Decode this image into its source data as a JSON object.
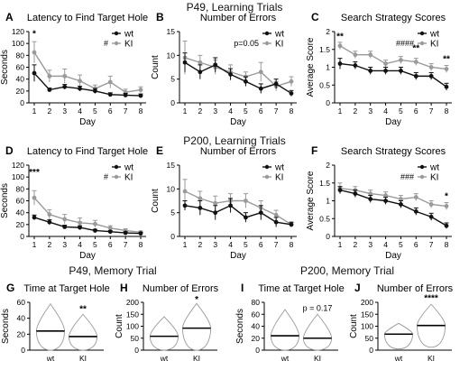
{
  "figure": {
    "section_titles": [
      "P49, Learning Trials",
      "P200, Learning Trials",
      "P49, Memory Trial",
      "P200, Memory Trial"
    ],
    "colors": {
      "wt": "#111111",
      "ki": "#9a9a9a"
    }
  },
  "chart_data": [
    {
      "id": "A",
      "label": "A",
      "type": "line",
      "title": "Latency to Find Target Hole",
      "xlabel": "Day",
      "ylabel": "Seconds",
      "ylim": [
        0,
        120
      ],
      "yticks": [
        0,
        20,
        40,
        60,
        80,
        100,
        120
      ],
      "x": [
        1,
        2,
        3,
        4,
        5,
        6,
        7,
        8
      ],
      "series": [
        {
          "name": "wt",
          "values": [
            50,
            22,
            27,
            24,
            20,
            14,
            13,
            12
          ],
          "err": [
            14,
            3,
            4,
            4,
            4,
            3,
            3,
            3
          ]
        },
        {
          "name": "KI",
          "values": [
            85,
            45,
            45,
            37,
            24,
            35,
            18,
            22
          ],
          "err": [
            18,
            10,
            12,
            10,
            6,
            10,
            5,
            5
          ]
        }
      ],
      "legend": {
        "entries": [
          "wt",
          "KI"
        ],
        "position": "top-right",
        "mark": "#"
      },
      "annotations": [
        {
          "text": "*",
          "x": 1,
          "y": 112
        }
      ]
    },
    {
      "id": "B",
      "label": "B",
      "type": "line",
      "title": "Number of Errors",
      "xlabel": "Day",
      "ylabel": "Count",
      "ylim": [
        0,
        15
      ],
      "yticks": [
        0,
        5,
        10,
        15
      ],
      "x": [
        1,
        2,
        3,
        4,
        5,
        6,
        7,
        8
      ],
      "series": [
        {
          "name": "wt",
          "values": [
            8.5,
            6.5,
            8,
            6,
            4.5,
            3,
            4,
            2
          ],
          "err": [
            2,
            1.5,
            1.5,
            1.2,
            1,
            1,
            1,
            0.6
          ]
        },
        {
          "name": "KI",
          "values": [
            9.5,
            8.5,
            7.5,
            6.5,
            5.5,
            6.5,
            3.5,
            4.5
          ],
          "err": [
            3.5,
            1.5,
            1.5,
            1.5,
            1,
            2,
            1,
            1
          ]
        }
      ],
      "legend": {
        "entries": [
          "wt",
          "KI"
        ],
        "position": "top-right",
        "note": "p=0.05"
      },
      "annotations": []
    },
    {
      "id": "C",
      "label": "C",
      "type": "line",
      "title": "Search Strategy Scores",
      "xlabel": "Day",
      "ylabel": "Average Score",
      "ylim": [
        0,
        2.0
      ],
      "yticks": [
        0,
        0.5,
        1.0,
        1.5,
        2.0
      ],
      "x": [
        1,
        2,
        3,
        4,
        5,
        6,
        7,
        8
      ],
      "series": [
        {
          "name": "wt",
          "values": [
            1.1,
            1.05,
            0.9,
            0.9,
            0.9,
            0.75,
            0.75,
            0.45
          ],
          "err": [
            0.15,
            0.1,
            0.1,
            0.1,
            0.1,
            0.1,
            0.1,
            0.1
          ]
        },
        {
          "name": "KI",
          "values": [
            1.6,
            1.35,
            1.35,
            1.1,
            1.2,
            1.15,
            1.0,
            0.95
          ],
          "err": [
            0.1,
            0.1,
            0.1,
            0.1,
            0.1,
            0.1,
            0.1,
            0.1
          ]
        }
      ],
      "legend": {
        "entries": [
          "wt",
          "KI"
        ],
        "position": "top-right",
        "mark": "####"
      },
      "annotations": [
        {
          "text": "**",
          "x": 1,
          "y": 1.78
        },
        {
          "text": "**",
          "x": 6,
          "y": 1.45
        },
        {
          "text": "**",
          "x": 8,
          "y": 1.15
        }
      ]
    },
    {
      "id": "D",
      "label": "D",
      "type": "line",
      "title": "Latency to Find Target Hole",
      "xlabel": "Day",
      "ylabel": "Seconds",
      "ylim": [
        0,
        120
      ],
      "yticks": [
        0,
        20,
        40,
        60,
        80,
        100,
        120
      ],
      "x": [
        1,
        2,
        3,
        4,
        5,
        6,
        7,
        8
      ],
      "series": [
        {
          "name": "wt",
          "values": [
            32,
            24,
            16,
            15,
            10,
            8,
            6,
            5
          ],
          "err": [
            4,
            4,
            3,
            3,
            2,
            2,
            2,
            2
          ]
        },
        {
          "name": "KI",
          "values": [
            65,
            37,
            29,
            23,
            21,
            14,
            10,
            7
          ],
          "err": [
            12,
            8,
            8,
            8,
            6,
            4,
            3,
            2
          ]
        }
      ],
      "legend": {
        "entries": [
          "wt",
          "KI"
        ],
        "position": "top-right",
        "mark": "#"
      },
      "annotations": [
        {
          "text": "***",
          "x": 1,
          "y": 103
        }
      ]
    },
    {
      "id": "E",
      "label": "E",
      "type": "line",
      "title": "Number of Errors",
      "xlabel": "Day",
      "ylabel": "Count",
      "ylim": [
        0,
        15
      ],
      "yticks": [
        0,
        5,
        10,
        15
      ],
      "x": [
        1,
        2,
        3,
        4,
        5,
        6,
        7,
        8
      ],
      "series": [
        {
          "name": "wt",
          "values": [
            6.5,
            6,
            5,
            6.5,
            4,
            5,
            3,
            2.5
          ],
          "err": [
            1,
            1.5,
            1.5,
            1.5,
            1,
            1.5,
            1,
            0.5
          ]
        },
        {
          "name": "KI",
          "values": [
            9.5,
            8,
            7,
            7.5,
            7.5,
            6,
            4.5,
            2.5
          ],
          "err": [
            2.5,
            1.5,
            1.5,
            1.5,
            1.5,
            1.5,
            1,
            0.5
          ]
        }
      ],
      "legend": {
        "entries": [
          "wt",
          "KI"
        ],
        "position": "top-right"
      },
      "annotations": []
    },
    {
      "id": "F",
      "label": "F",
      "type": "line",
      "title": "Search Strategy Scores",
      "xlabel": "Day",
      "ylabel": "Average Score",
      "ylim": [
        0,
        2.0
      ],
      "yticks": [
        0,
        0.5,
        1.0,
        1.5,
        2.0
      ],
      "x": [
        1,
        2,
        3,
        4,
        5,
        6,
        7,
        8
      ],
      "series": [
        {
          "name": "wt",
          "values": [
            1.3,
            1.2,
            1.05,
            1.0,
            0.9,
            0.7,
            0.55,
            0.3
          ],
          "err": [
            0.1,
            0.1,
            0.1,
            0.1,
            0.1,
            0.1,
            0.1,
            0.08
          ]
        },
        {
          "name": "KI",
          "values": [
            1.35,
            1.3,
            1.2,
            1.15,
            1.05,
            1.1,
            0.9,
            0.85
          ],
          "err": [
            0.15,
            0.1,
            0.1,
            0.1,
            0.1,
            0.1,
            0.1,
            0.1
          ]
        }
      ],
      "legend": {
        "entries": [
          "wt",
          "KI"
        ],
        "position": "top-right",
        "mark": "###"
      },
      "annotations": [
        {
          "text": "*",
          "x": 8,
          "y": 1.05
        }
      ]
    },
    {
      "id": "G",
      "label": "G",
      "type": "violin",
      "title": "Time at Target Hole",
      "xlabel": "",
      "ylabel": "Seconds",
      "ylim": [
        0,
        60
      ],
      "yticks": [
        0,
        20,
        40,
        60
      ],
      "categories": [
        "wt",
        "KI"
      ],
      "series": [
        {
          "name": "wt",
          "median": 24,
          "min": 0,
          "max": 58
        },
        {
          "name": "KI",
          "median": 17,
          "min": 0,
          "max": 45
        }
      ],
      "annotations": [
        {
          "text": "**",
          "category": "KI",
          "y": 48
        }
      ]
    },
    {
      "id": "H",
      "label": "H",
      "type": "violin",
      "title": "Number of Errors",
      "xlabel": "",
      "ylabel": "Count",
      "ylim": [
        0,
        200
      ],
      "yticks": [
        0,
        50,
        100,
        150,
        200
      ],
      "categories": [
        "wt",
        "KI"
      ],
      "series": [
        {
          "name": "wt",
          "median": 58,
          "min": 0,
          "max": 140
        },
        {
          "name": "KI",
          "median": 92,
          "min": 0,
          "max": 195
        }
      ],
      "annotations": [
        {
          "text": "*",
          "category": "KI",
          "y": 200
        }
      ]
    },
    {
      "id": "I",
      "label": "I",
      "type": "violin",
      "title": "Time at Target Hole",
      "xlabel": "",
      "ylabel": "Seconds",
      "ylim": [
        0,
        80
      ],
      "yticks": [
        0,
        20,
        40,
        60,
        80
      ],
      "categories": [
        "wt",
        "KI"
      ],
      "series": [
        {
          "name": "wt",
          "median": 24,
          "min": 0,
          "max": 68
        },
        {
          "name": "KI",
          "median": 20,
          "min": 0,
          "max": 60
        }
      ],
      "annotations": [
        {
          "text": "p = 0.17",
          "category": "KI",
          "y": 66
        }
      ]
    },
    {
      "id": "J",
      "label": "J",
      "type": "violin",
      "title": "Number of Errors",
      "xlabel": "",
      "ylabel": "Count",
      "ylim": [
        0,
        200
      ],
      "yticks": [
        0,
        50,
        100,
        150,
        200
      ],
      "categories": [
        "wt",
        "KI"
      ],
      "series": [
        {
          "name": "wt",
          "median": 67,
          "min": 5,
          "max": 112
        },
        {
          "name": "KI",
          "median": 103,
          "min": 12,
          "max": 192
        }
      ],
      "annotations": [
        {
          "text": "****",
          "category": "KI",
          "y": 205
        }
      ]
    }
  ]
}
